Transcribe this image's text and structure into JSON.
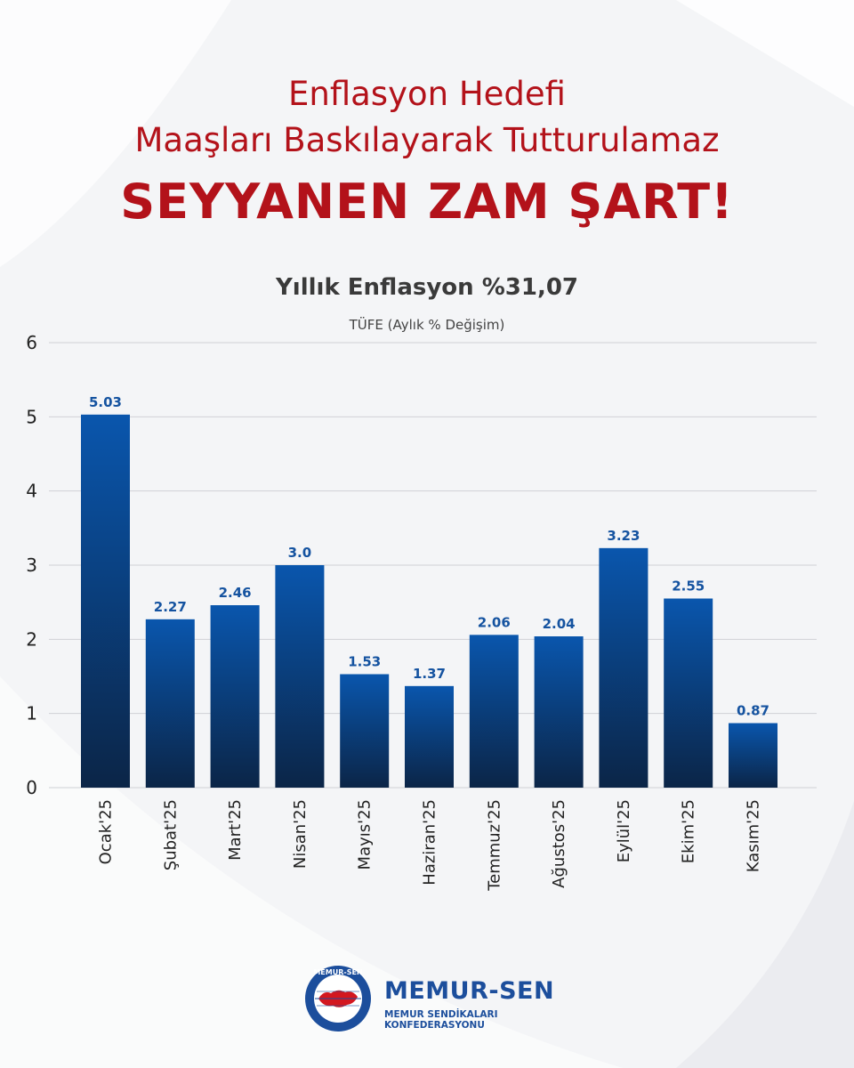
{
  "header": {
    "line1": "Enflasyon Hedefi",
    "line2": "Maaşları Baskılayarak Tutturulamaz",
    "line3": "SEYYANEN ZAM ŞART!"
  },
  "colors": {
    "headline": "#b3121a",
    "bar_top": "#0a56ad",
    "bar_bottom": "#0b2547",
    "label": "#1553a0"
  },
  "chart_data": {
    "type": "bar",
    "title": "Yıllık Enflasyon %31,07",
    "subtitle": "TÜFE (Aylık % Değişim)",
    "categories": [
      "Ocak'25",
      "Şubat'25",
      "Mart'25",
      "Nisan'25",
      "Mayıs'25",
      "Haziran'25",
      "Temmuz'25",
      "Ağustos'25",
      "Eylül'25",
      "Ekim'25",
      "Kasım'25"
    ],
    "values": [
      5.03,
      2.27,
      2.46,
      3.0,
      1.53,
      1.37,
      2.06,
      2.04,
      3.23,
      2.55,
      0.87
    ],
    "value_labels": [
      "5.03",
      "2.27",
      "2.46",
      "3.0",
      "1.53",
      "1.37",
      "2.06",
      "2.04",
      "3.23",
      "2.55",
      "0.87"
    ],
    "ylim": [
      0,
      6
    ],
    "yticks": [
      "0",
      "1",
      "2",
      "3",
      "4",
      "5",
      "6"
    ],
    "grid": true
  },
  "logo": {
    "name": "MEMUR-SEN",
    "subtitle": "MEMUR SENDİKALARI KONFEDERASYONU",
    "seal_text": "MEMUR-SEN"
  }
}
